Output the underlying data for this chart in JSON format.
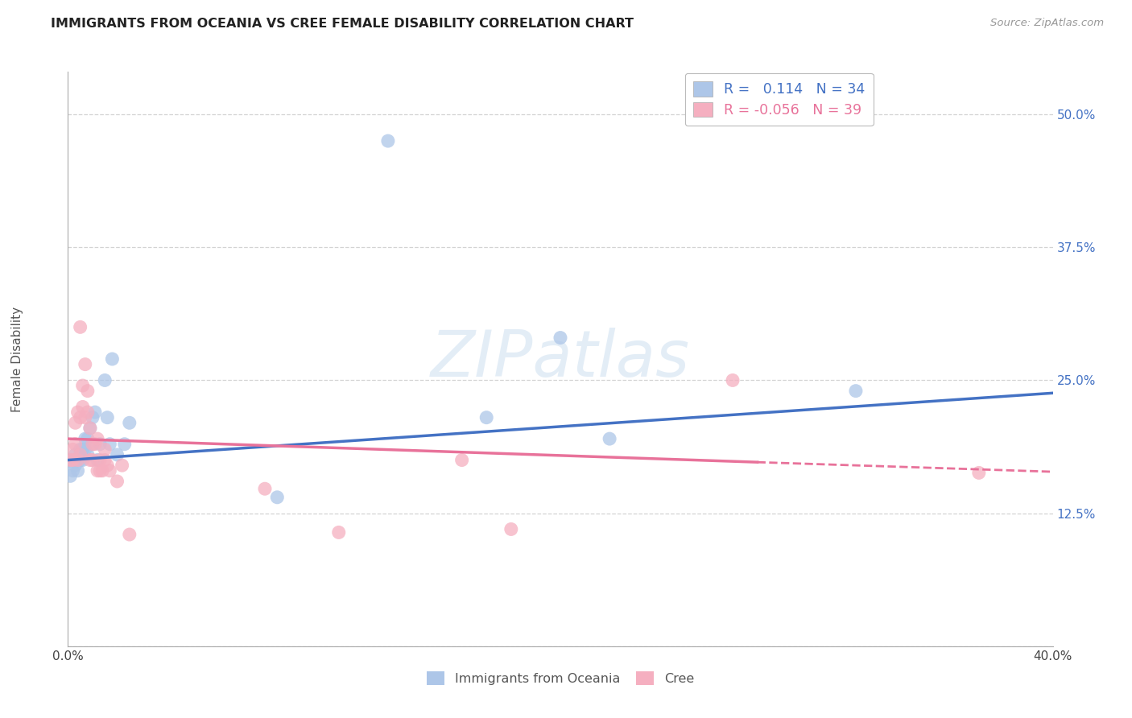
{
  "title": "IMMIGRANTS FROM OCEANIA VS CREE FEMALE DISABILITY CORRELATION CHART",
  "source": "Source: ZipAtlas.com",
  "ylabel": "Female Disability",
  "xlim": [
    0.0,
    0.4
  ],
  "ylim": [
    0.0,
    0.54
  ],
  "yticks": [
    0.0,
    0.125,
    0.25,
    0.375,
    0.5
  ],
  "ytick_labels": [
    "",
    "12.5%",
    "25.0%",
    "37.5%",
    "50.0%"
  ],
  "xticks": [
    0.0,
    0.1,
    0.2,
    0.3,
    0.4
  ],
  "xtick_labels": [
    "0.0%",
    "",
    "",
    "",
    "40.0%"
  ],
  "r_oceania": 0.114,
  "n_oceania": 34,
  "r_cree": -0.056,
  "n_cree": 39,
  "background_color": "#ffffff",
  "grid_color": "#c8c8c8",
  "oceania_color": "#adc6e8",
  "cree_color": "#f5afc0",
  "oceania_line_color": "#4472c4",
  "cree_line_color": "#e8729a",
  "watermark": "ZIPatlas",
  "oceania_x": [
    0.001,
    0.002,
    0.002,
    0.003,
    0.003,
    0.004,
    0.004,
    0.005,
    0.005,
    0.006,
    0.006,
    0.007,
    0.007,
    0.008,
    0.008,
    0.009,
    0.01,
    0.01,
    0.011,
    0.012,
    0.013,
    0.015,
    0.016,
    0.017,
    0.018,
    0.02,
    0.023,
    0.025,
    0.085,
    0.13,
    0.17,
    0.2,
    0.22,
    0.32
  ],
  "oceania_y": [
    0.16,
    0.165,
    0.175,
    0.17,
    0.18,
    0.165,
    0.175,
    0.175,
    0.185,
    0.175,
    0.185,
    0.195,
    0.185,
    0.18,
    0.195,
    0.205,
    0.215,
    0.19,
    0.22,
    0.175,
    0.19,
    0.25,
    0.215,
    0.19,
    0.27,
    0.18,
    0.19,
    0.21,
    0.14,
    0.475,
    0.215,
    0.29,
    0.195,
    0.24
  ],
  "cree_x": [
    0.001,
    0.002,
    0.002,
    0.003,
    0.003,
    0.004,
    0.004,
    0.005,
    0.005,
    0.005,
    0.006,
    0.006,
    0.007,
    0.007,
    0.008,
    0.008,
    0.009,
    0.009,
    0.01,
    0.01,
    0.011,
    0.012,
    0.012,
    0.013,
    0.013,
    0.014,
    0.015,
    0.015,
    0.016,
    0.017,
    0.02,
    0.022,
    0.025,
    0.08,
    0.11,
    0.16,
    0.18,
    0.27,
    0.37
  ],
  "cree_y": [
    0.175,
    0.185,
    0.175,
    0.19,
    0.21,
    0.22,
    0.175,
    0.18,
    0.215,
    0.3,
    0.225,
    0.245,
    0.215,
    0.265,
    0.22,
    0.24,
    0.205,
    0.175,
    0.175,
    0.19,
    0.19,
    0.195,
    0.165,
    0.175,
    0.165,
    0.165,
    0.185,
    0.175,
    0.17,
    0.165,
    0.155,
    0.17,
    0.105,
    0.148,
    0.107,
    0.175,
    0.11,
    0.25,
    0.163
  ],
  "line_oceania_x0": 0.0,
  "line_oceania_x1": 0.4,
  "line_oceania_y0": 0.175,
  "line_oceania_y1": 0.238,
  "line_cree_solid_x0": 0.0,
  "line_cree_solid_x1": 0.28,
  "line_cree_y0": 0.195,
  "line_cree_y1": 0.173,
  "line_cree_dash_x0": 0.28,
  "line_cree_dash_x1": 0.4,
  "line_cree_dash_y0": 0.173,
  "line_cree_dash_y1": 0.164
}
